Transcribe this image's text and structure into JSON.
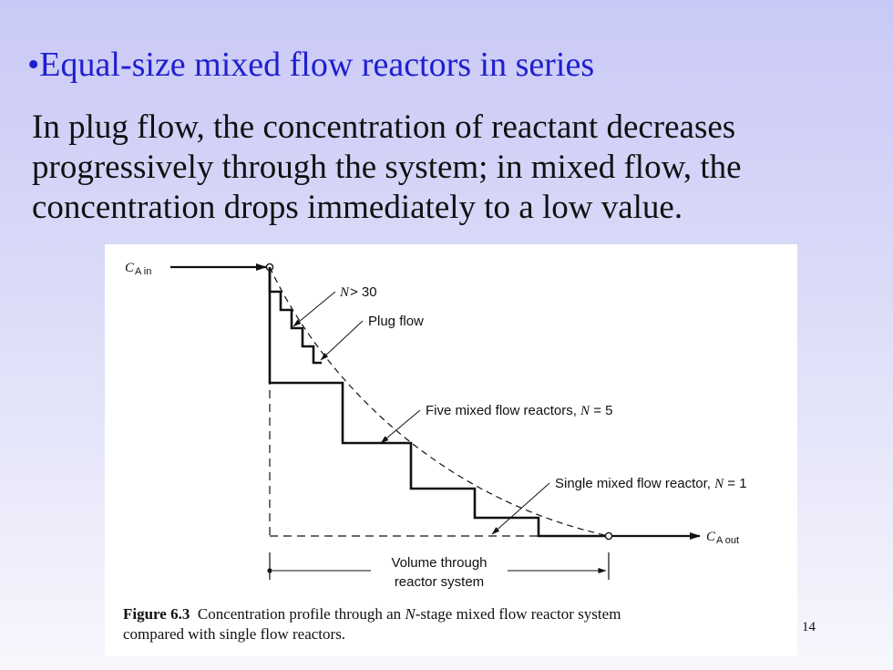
{
  "slide": {
    "bullet": "•Equal-size mixed flow reactors in series",
    "paragraph_lines": [
      "In plug flow, the concentration of reactant decreases",
      "progressively through the system; in mixed flow, the",
      "concentration drops immediately to a low value."
    ],
    "slide_number": "14"
  },
  "figure": {
    "inlet_symbol": "C",
    "inlet_subscript": "A in",
    "outlet_symbol": "C",
    "outlet_subscript": "A out",
    "label_n30_var": "N",
    "label_n30_rest": " > 30",
    "label_plug": "Plug flow",
    "label_five_text": "Five mixed flow reactors, ",
    "label_five_var": "N",
    "label_five_rest": " = 5",
    "label_single_text": "Single mixed flow reactor, ",
    "label_single_var": "N",
    "label_single_rest": " = 1",
    "axis_label_line1": "Volume through",
    "axis_label_line2": "reactor system",
    "caption_bold": "Figure 6.3",
    "caption_pre": "  Concentration profile through an ",
    "caption_var": "N",
    "caption_line1_rest": "-stage mixed flow reactor system",
    "caption_line2": "compared with single flow reactors."
  }
}
